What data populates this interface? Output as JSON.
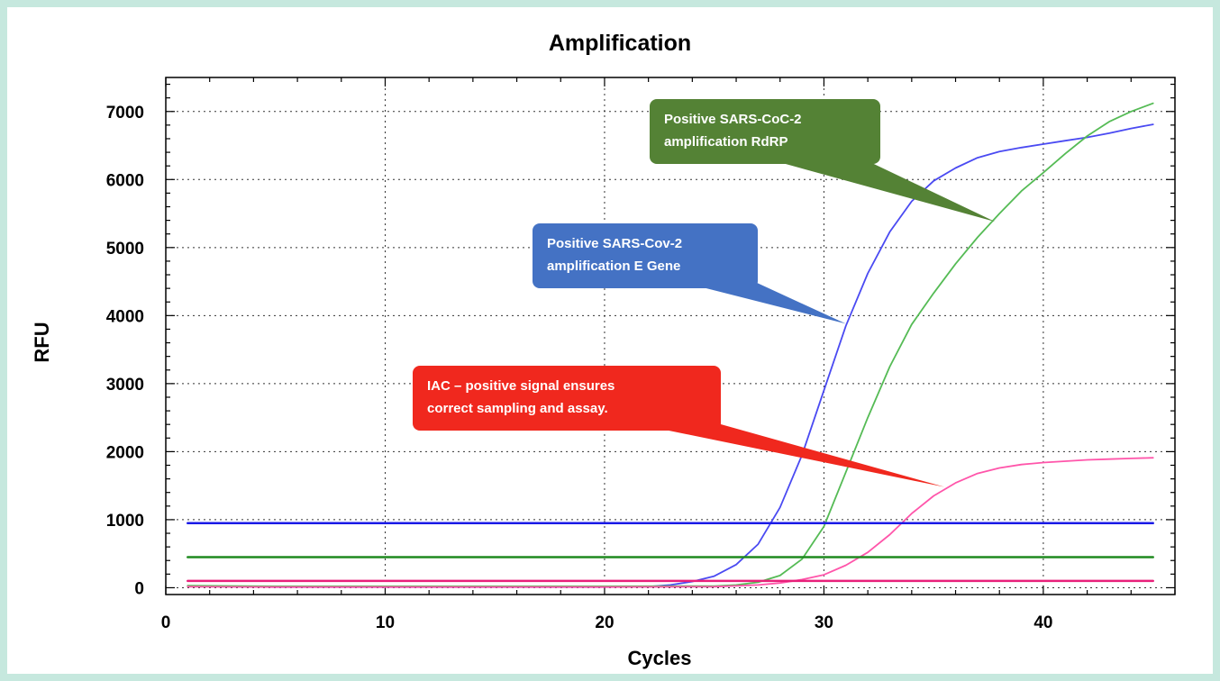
{
  "chart_data": {
    "type": "line",
    "title": "Amplification",
    "xlabel": "Cycles",
    "ylabel": "RFU",
    "xlim": [
      0,
      46
    ],
    "ylim": [
      -100,
      7500
    ],
    "xticks": [
      0,
      10,
      20,
      30,
      40
    ],
    "yticks": [
      0,
      1000,
      2000,
      3000,
      4000,
      5000,
      6000,
      7000
    ],
    "grid": true,
    "series": [
      {
        "color": "#4a4af2",
        "x": [
          1,
          5,
          10,
          15,
          20,
          22,
          23,
          24,
          25,
          26,
          27,
          28,
          29,
          30,
          31,
          32,
          33,
          34,
          35,
          36,
          37,
          38,
          39,
          40,
          41,
          42,
          43,
          44,
          45
        ],
        "y": [
          20,
          10,
          10,
          10,
          10,
          15,
          40,
          90,
          170,
          340,
          640,
          1180,
          1950,
          2900,
          3850,
          4620,
          5230,
          5680,
          5980,
          6170,
          6320,
          6410,
          6470,
          6520,
          6570,
          6620,
          6680,
          6750,
          6810
        ]
      },
      {
        "color": "#55bb55",
        "x": [
          1,
          5,
          10,
          15,
          20,
          25,
          26,
          27,
          28,
          29,
          30,
          31,
          32,
          33,
          34,
          35,
          36,
          37,
          38,
          39,
          40,
          41,
          42,
          43,
          44,
          45
        ],
        "y": [
          30,
          20,
          20,
          20,
          20,
          25,
          40,
          80,
          180,
          420,
          900,
          1700,
          2500,
          3250,
          3870,
          4330,
          4760,
          5150,
          5500,
          5830,
          6100,
          6380,
          6640,
          6850,
          7000,
          7120
        ]
      },
      {
        "color": "#ff55aa",
        "x": [
          1,
          5,
          10,
          15,
          20,
          25,
          27,
          28,
          29,
          30,
          31,
          32,
          33,
          34,
          35,
          36,
          37,
          38,
          39,
          40,
          41,
          42,
          43,
          44,
          45
        ],
        "y": [
          15,
          10,
          10,
          10,
          10,
          15,
          40,
          70,
          120,
          190,
          330,
          520,
          780,
          1090,
          1350,
          1540,
          1680,
          1760,
          1810,
          1840,
          1860,
          1880,
          1890,
          1900,
          1910
        ]
      },
      {
        "color": "#1a1ae6",
        "x": [
          1,
          45
        ],
        "y": [
          950,
          950
        ]
      },
      {
        "color": "#1f8a1f",
        "x": [
          1,
          45
        ],
        "y": [
          450,
          450
        ]
      },
      {
        "color": "#e8207a",
        "x": [
          1,
          45
        ],
        "y": [
          100,
          100
        ]
      }
    ],
    "annotations": [
      {
        "lines": [
          "Positive SARS-CoC-2",
          "amplification RdRP"
        ],
        "color": "#548235",
        "pointer_target": [
          37.8,
          5380
        ]
      },
      {
        "lines": [
          "Positive SARS-Cov-2",
          "amplification E Gene"
        ],
        "color": "#4472c4",
        "pointer_target": [
          31.0,
          3880
        ]
      },
      {
        "lines": [
          "IAC – positive signal ensures",
          "correct sampling and assay."
        ],
        "color": "#f0281e",
        "pointer_target": [
          35.5,
          1480
        ]
      }
    ]
  }
}
